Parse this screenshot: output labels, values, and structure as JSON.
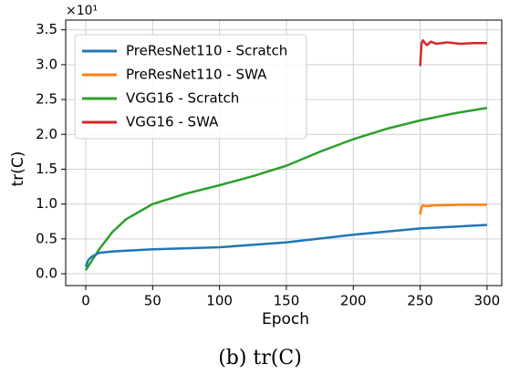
{
  "chart_data": {
    "type": "line",
    "caption": "(b) tr(C)",
    "xlabel": "Epoch",
    "ylabel": "tr(C)",
    "y_offset_label": "×10¹",
    "xlim": [
      -15,
      311
    ],
    "ylim": [
      -0.17,
      3.64
    ],
    "xticks": [
      0,
      50,
      100,
      150,
      200,
      250,
      300
    ],
    "yticks": [
      {
        "value": 0,
        "label": "0.0"
      },
      {
        "value": 0.5,
        "label": "0.5"
      },
      {
        "value": 1,
        "label": "1.0"
      },
      {
        "value": 1.5,
        "label": "1.5"
      },
      {
        "value": 2,
        "label": "2.0"
      },
      {
        "value": 2.5,
        "label": "2.5"
      },
      {
        "value": 3,
        "label": "3.0"
      },
      {
        "value": 3.5,
        "label": "3.5"
      }
    ],
    "grid": true,
    "legend": "upper left",
    "series": [
      {
        "name": "PreResNet110 - Scratch",
        "color": "#1f77b4",
        "x": [
          0,
          2,
          5,
          10,
          20,
          50,
          100,
          150,
          200,
          250,
          300
        ],
        "values": [
          0.1,
          0.2,
          0.25,
          0.3,
          0.32,
          0.35,
          0.38,
          0.45,
          0.56,
          0.65,
          0.7
        ]
      },
      {
        "name": "PreResNet110 - SWA",
        "color": "#ff7f0e",
        "x": [
          250,
          251,
          252,
          255,
          260,
          280,
          300
        ],
        "values": [
          0.85,
          0.95,
          0.98,
          0.97,
          0.98,
          0.99,
          0.99
        ]
      },
      {
        "name": "VGG16 - Scratch",
        "color": "#2ca02c",
        "x": [
          0,
          5,
          10,
          20,
          30,
          50,
          75,
          100,
          125,
          150,
          175,
          200,
          225,
          250,
          275,
          300
        ],
        "values": [
          0.05,
          0.2,
          0.35,
          0.6,
          0.78,
          1.0,
          1.15,
          1.27,
          1.4,
          1.55,
          1.75,
          1.93,
          2.08,
          2.2,
          2.3,
          2.38
        ]
      },
      {
        "name": "VGG16 - SWA",
        "color": "#d62728",
        "x": [
          250,
          251,
          252,
          255,
          258,
          262,
          270,
          280,
          290,
          300
        ],
        "values": [
          2.98,
          3.3,
          3.35,
          3.28,
          3.33,
          3.3,
          3.32,
          3.3,
          3.31,
          3.31
        ]
      }
    ]
  }
}
